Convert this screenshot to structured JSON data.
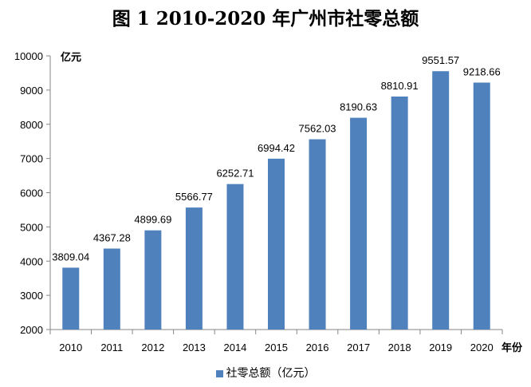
{
  "chart_data": {
    "type": "bar",
    "title": "图 1 2010-2020 年广州市社零总额",
    "xlabel": "年份",
    "ylabel": "亿元",
    "ylim": [
      2000,
      10000
    ],
    "yticks": [
      2000,
      3000,
      4000,
      5000,
      6000,
      7000,
      8000,
      9000,
      10000
    ],
    "categories": [
      "2010",
      "2011",
      "2012",
      "2013",
      "2014",
      "2015",
      "2016",
      "2017",
      "2018",
      "2019",
      "2020"
    ],
    "series": [
      {
        "name": "社零总额（亿元）",
        "color": "#4f81bd",
        "values": [
          3809.04,
          4367.28,
          4899.69,
          5566.77,
          6252.71,
          6994.42,
          7562.03,
          8190.63,
          8810.91,
          9551.57,
          9218.66
        ],
        "labels": [
          "3809.04",
          "4367.28",
          "4899.69",
          "5566.77",
          "6252.71",
          "6994.42",
          "7562.03",
          "8190.63",
          "8810.91",
          "9551.57",
          "9218.66"
        ]
      }
    ],
    "grid": false,
    "legend": "bottom"
  }
}
